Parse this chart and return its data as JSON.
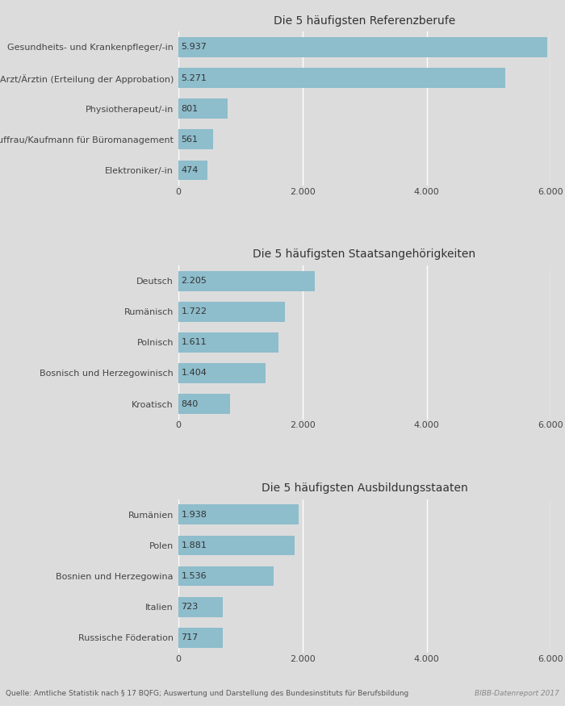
{
  "chart1_title": "Die 5 häufigsten Referenzberufe",
  "chart1_labels": [
    "Elektroniker/-in",
    "Kauffrau/Kaufmann für Büromanagement",
    "Physiotherapeut/-in",
    "Arzt/Ärztin (Erteilung der Approbation)",
    "Gesundheits- und Krankenpfleger/-in"
  ],
  "chart1_values": [
    474,
    561,
    801,
    5271,
    5937
  ],
  "chart2_title": "Die 5 häufigsten Staatsangehörigkeiten",
  "chart2_labels": [
    "Kroatisch",
    "Bosnisch und Herzegowinisch",
    "Polnisch",
    "Rumänisch",
    "Deutsch"
  ],
  "chart2_values": [
    840,
    1404,
    1611,
    1722,
    2205
  ],
  "chart3_title": "Die 5 häufigsten Ausbildungsstaaten",
  "chart3_labels": [
    "Russische Föderation",
    "Italien",
    "Bosnien und Herzegowina",
    "Polen",
    "Rumänien"
  ],
  "chart3_values": [
    717,
    723,
    1536,
    1881,
    1938
  ],
  "bar_color": "#8ebdcc",
  "bg_color": "#dcdcdc",
  "plot_bg_color": "#dcdcdc",
  "bar_label_color": "#333333",
  "title_color": "#333333",
  "axis_label_color": "#444444",
  "xlim": [
    0,
    6000
  ],
  "xticks": [
    0,
    2000,
    4000,
    6000
  ],
  "xtick_labels": [
    "0",
    "2.000",
    "4.000",
    "6.000"
  ],
  "footnote": "Quelle: Amtliche Statistik nach § 17 BQFG; Auswertung und Darstellung des Bundesinstituts für Berufsbildung",
  "footnote_right": "BIBB-Datenreport 2017",
  "bar_height": 0.65,
  "label_fontsize": 8.0,
  "title_fontsize": 10.0,
  "tick_fontsize": 8.0,
  "value_fontsize": 8.0
}
